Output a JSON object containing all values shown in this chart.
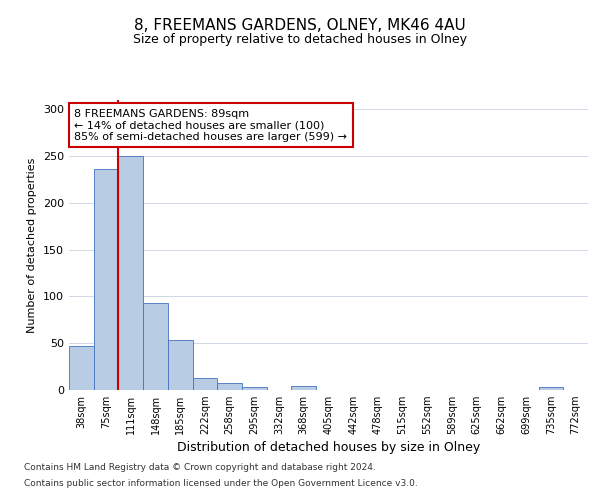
{
  "title": "8, FREEMANS GARDENS, OLNEY, MK46 4AU",
  "subtitle": "Size of property relative to detached houses in Olney",
  "xlabel": "Distribution of detached houses by size in Olney",
  "ylabel": "Number of detached properties",
  "footer_line1": "Contains HM Land Registry data © Crown copyright and database right 2024.",
  "footer_line2": "Contains public sector information licensed under the Open Government Licence v3.0.",
  "categories": [
    "38sqm",
    "75sqm",
    "111sqm",
    "148sqm",
    "185sqm",
    "222sqm",
    "258sqm",
    "295sqm",
    "332sqm",
    "368sqm",
    "405sqm",
    "442sqm",
    "478sqm",
    "515sqm",
    "552sqm",
    "589sqm",
    "625sqm",
    "662sqm",
    "699sqm",
    "735sqm",
    "772sqm"
  ],
  "values": [
    47,
    236,
    250,
    93,
    53,
    13,
    8,
    3,
    0,
    4,
    0,
    0,
    0,
    0,
    0,
    0,
    0,
    0,
    0,
    3,
    0
  ],
  "bar_color": "#b8cce4",
  "bar_edge_color": "#4472c4",
  "vline_x": 1.5,
  "vline_color": "#cc0000",
  "annotation_text": "8 FREEMANS GARDENS: 89sqm\n← 14% of detached houses are smaller (100)\n85% of semi-detached houses are larger (599) →",
  "annotation_box_color": "#ffffff",
  "annotation_box_edge": "#cc0000",
  "ylim": [
    0,
    310
  ],
  "yticks": [
    0,
    50,
    100,
    150,
    200,
    250,
    300
  ],
  "bg_color": "#ffffff",
  "grid_color": "#d0d8e8",
  "title_fontsize": 11,
  "subtitle_fontsize": 9,
  "ylabel_fontsize": 8,
  "xlabel_fontsize": 9,
  "ytick_fontsize": 8,
  "xtick_fontsize": 7,
  "ann_fontsize": 8,
  "footer_fontsize": 6.5
}
